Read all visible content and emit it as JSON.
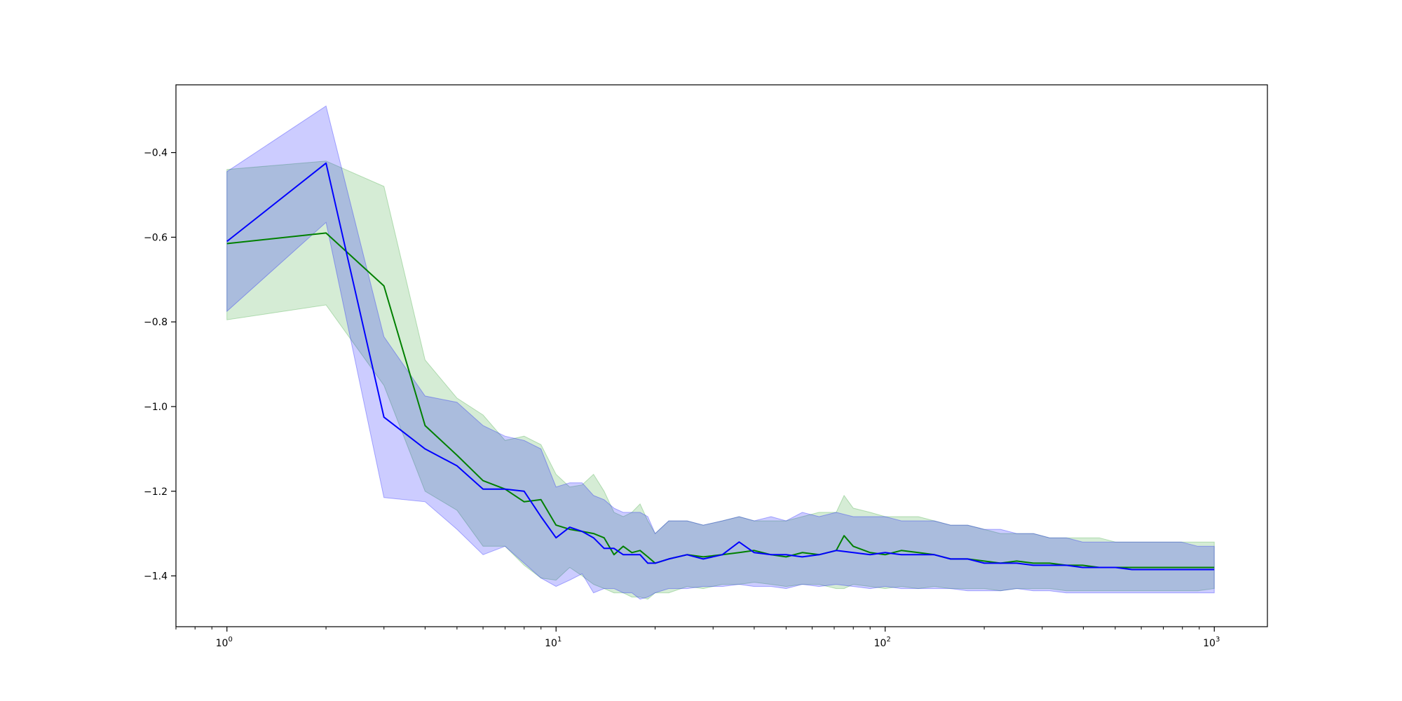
{
  "chart_data": {
    "type": "line",
    "title": "",
    "xlabel": "",
    "ylabel": "",
    "xscale": "log",
    "xlim": [
      0.7,
      1450
    ],
    "ylim": [
      -1.52,
      -0.24
    ],
    "grid": false,
    "legend": "none",
    "x_ticks": [
      {
        "value": 1,
        "base": "10",
        "exp": "0"
      },
      {
        "value": 10,
        "base": "10",
        "exp": "1"
      },
      {
        "value": 100,
        "base": "10",
        "exp": "2"
      },
      {
        "value": 1000,
        "base": "10",
        "exp": "3"
      }
    ],
    "y_ticks": [
      {
        "value": -0.4,
        "label": "−0.4"
      },
      {
        "value": -0.6,
        "label": "−0.6"
      },
      {
        "value": -0.8,
        "label": "−0.8"
      },
      {
        "value": -1.0,
        "label": "−1.0"
      },
      {
        "value": -1.2,
        "label": "−1.2"
      },
      {
        "value": -1.4,
        "label": "−1.4"
      }
    ],
    "series": [
      {
        "color": "#008000",
        "band_color": "#2ca02c",
        "x": [
          1,
          2,
          3,
          4,
          5,
          6,
          7,
          8,
          9,
          10,
          11,
          12,
          13,
          14,
          15,
          16,
          17,
          18,
          19,
          20,
          22,
          25,
          28,
          32,
          36,
          40,
          45,
          50,
          56,
          63,
          71,
          75,
          80,
          90,
          100,
          112,
          126,
          141,
          158,
          178,
          200,
          224,
          251,
          282,
          316,
          355,
          398,
          447,
          501,
          562,
          631,
          708,
          794,
          891,
          1000
        ],
        "mean": [
          -0.615,
          -0.59,
          -0.715,
          -1.045,
          -1.115,
          -1.175,
          -1.195,
          -1.225,
          -1.22,
          -1.28,
          -1.29,
          -1.295,
          -1.3,
          -1.31,
          -1.35,
          -1.33,
          -1.345,
          -1.34,
          -1.355,
          -1.37,
          -1.36,
          -1.35,
          -1.355,
          -1.35,
          -1.345,
          -1.34,
          -1.35,
          -1.355,
          -1.345,
          -1.35,
          -1.34,
          -1.305,
          -1.33,
          -1.345,
          -1.35,
          -1.34,
          -1.345,
          -1.35,
          -1.36,
          -1.36,
          -1.365,
          -1.37,
          -1.365,
          -1.37,
          -1.37,
          -1.375,
          -1.375,
          -1.38,
          -1.38,
          -1.38,
          -1.38,
          -1.38,
          -1.38,
          -1.38,
          -1.38
        ],
        "lower": [
          -0.795,
          -0.76,
          -0.95,
          -1.2,
          -1.245,
          -1.33,
          -1.33,
          -1.375,
          -1.405,
          -1.41,
          -1.38,
          -1.4,
          -1.42,
          -1.43,
          -1.44,
          -1.44,
          -1.45,
          -1.45,
          -1.455,
          -1.44,
          -1.44,
          -1.425,
          -1.43,
          -1.42,
          -1.42,
          -1.415,
          -1.42,
          -1.425,
          -1.42,
          -1.42,
          -1.43,
          -1.43,
          -1.42,
          -1.425,
          -1.43,
          -1.425,
          -1.43,
          -1.425,
          -1.43,
          -1.43,
          -1.43,
          -1.435,
          -1.43,
          -1.43,
          -1.43,
          -1.435,
          -1.435,
          -1.435,
          -1.435,
          -1.435,
          -1.435,
          -1.435,
          -1.435,
          -1.435,
          -1.43
        ],
        "upper": [
          -0.44,
          -0.42,
          -0.48,
          -0.89,
          -0.98,
          -1.02,
          -1.08,
          -1.07,
          -1.09,
          -1.16,
          -1.19,
          -1.185,
          -1.16,
          -1.2,
          -1.25,
          -1.26,
          -1.25,
          -1.23,
          -1.27,
          -1.3,
          -1.27,
          -1.27,
          -1.28,
          -1.27,
          -1.26,
          -1.27,
          -1.27,
          -1.27,
          -1.26,
          -1.25,
          -1.25,
          -1.21,
          -1.24,
          -1.25,
          -1.26,
          -1.26,
          -1.26,
          -1.27,
          -1.28,
          -1.28,
          -1.29,
          -1.3,
          -1.3,
          -1.3,
          -1.31,
          -1.31,
          -1.31,
          -1.31,
          -1.32,
          -1.32,
          -1.32,
          -1.32,
          -1.32,
          -1.32,
          -1.32
        ]
      },
      {
        "color": "#0000ff",
        "band_color": "#0000ff",
        "x": [
          1,
          2,
          3,
          4,
          5,
          6,
          7,
          8,
          9,
          10,
          11,
          12,
          13,
          14,
          15,
          16,
          17,
          18,
          19,
          20,
          22,
          25,
          28,
          32,
          36,
          40,
          45,
          50,
          56,
          63,
          71,
          80,
          90,
          100,
          112,
          126,
          141,
          158,
          178,
          200,
          224,
          251,
          282,
          316,
          355,
          398,
          447,
          501,
          562,
          631,
          708,
          794,
          891,
          1000
        ],
        "mean": [
          -0.61,
          -0.425,
          -1.025,
          -1.1,
          -1.14,
          -1.195,
          -1.195,
          -1.2,
          -1.26,
          -1.31,
          -1.285,
          -1.295,
          -1.31,
          -1.335,
          -1.335,
          -1.35,
          -1.35,
          -1.35,
          -1.37,
          -1.37,
          -1.36,
          -1.35,
          -1.36,
          -1.35,
          -1.32,
          -1.345,
          -1.35,
          -1.35,
          -1.355,
          -1.35,
          -1.34,
          -1.345,
          -1.35,
          -1.345,
          -1.35,
          -1.35,
          -1.35,
          -1.36,
          -1.36,
          -1.37,
          -1.37,
          -1.37,
          -1.375,
          -1.375,
          -1.375,
          -1.38,
          -1.38,
          -1.38,
          -1.385,
          -1.385,
          -1.385,
          -1.385,
          -1.385,
          -1.385
        ],
        "lower": [
          -0.775,
          -0.565,
          -1.215,
          -1.225,
          -1.29,
          -1.35,
          -1.33,
          -1.37,
          -1.405,
          -1.425,
          -1.41,
          -1.395,
          -1.44,
          -1.43,
          -1.43,
          -1.44,
          -1.44,
          -1.455,
          -1.45,
          -1.44,
          -1.43,
          -1.43,
          -1.425,
          -1.425,
          -1.42,
          -1.425,
          -1.425,
          -1.43,
          -1.42,
          -1.425,
          -1.42,
          -1.425,
          -1.43,
          -1.425,
          -1.43,
          -1.43,
          -1.43,
          -1.43,
          -1.435,
          -1.435,
          -1.435,
          -1.43,
          -1.435,
          -1.435,
          -1.44,
          -1.44,
          -1.44,
          -1.44,
          -1.44,
          -1.44,
          -1.44,
          -1.44,
          -1.44,
          -1.44
        ],
        "upper": [
          -0.445,
          -0.29,
          -0.835,
          -0.975,
          -0.99,
          -1.045,
          -1.07,
          -1.08,
          -1.1,
          -1.19,
          -1.18,
          -1.18,
          -1.21,
          -1.22,
          -1.24,
          -1.25,
          -1.25,
          -1.25,
          -1.26,
          -1.3,
          -1.27,
          -1.27,
          -1.28,
          -1.27,
          -1.26,
          -1.27,
          -1.26,
          -1.27,
          -1.25,
          -1.26,
          -1.25,
          -1.26,
          -1.26,
          -1.26,
          -1.27,
          -1.27,
          -1.27,
          -1.28,
          -1.28,
          -1.29,
          -1.29,
          -1.3,
          -1.3,
          -1.31,
          -1.31,
          -1.32,
          -1.32,
          -1.32,
          -1.32,
          -1.32,
          -1.32,
          -1.32,
          -1.33,
          -1.33
        ]
      }
    ]
  }
}
